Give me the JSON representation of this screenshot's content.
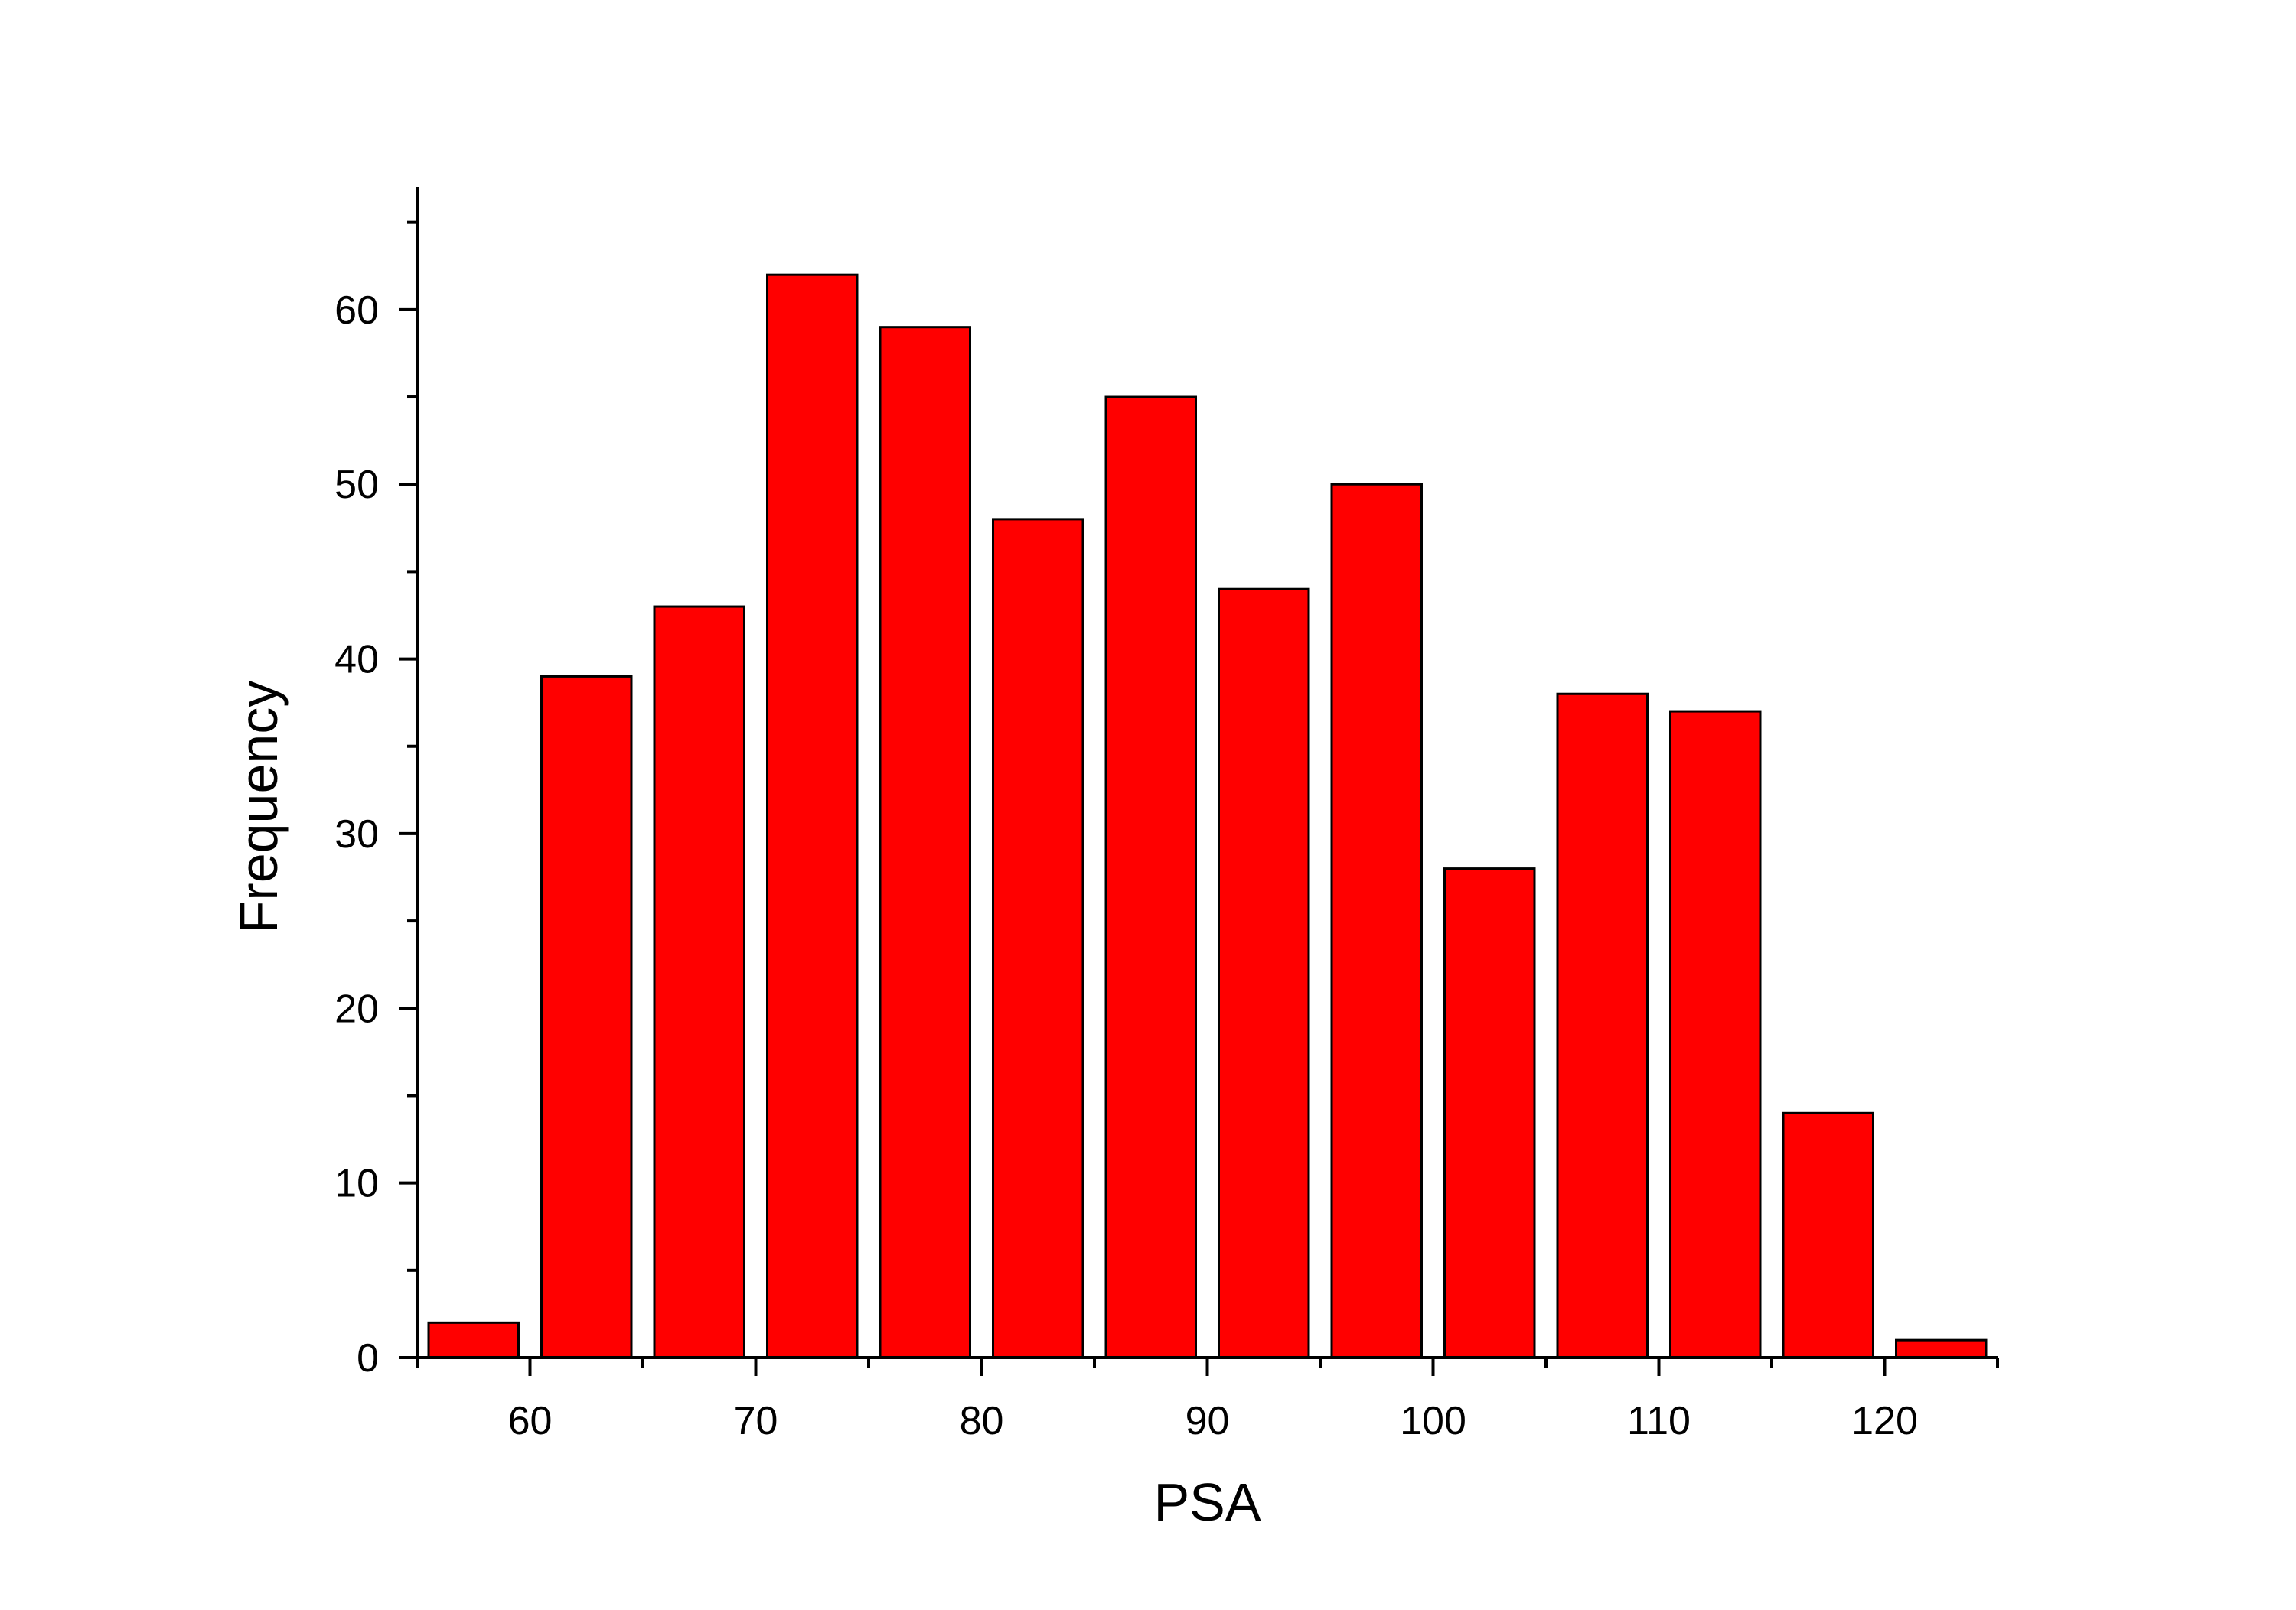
{
  "chart_data": {
    "type": "bar",
    "title": "",
    "xlabel": "PSA",
    "ylabel": "Frequency",
    "bin_width": 5,
    "bins": [
      {
        "start": 55,
        "end": 60,
        "value": 2
      },
      {
        "start": 60,
        "end": 65,
        "value": 39
      },
      {
        "start": 65,
        "end": 70,
        "value": 43
      },
      {
        "start": 70,
        "end": 75,
        "value": 62
      },
      {
        "start": 75,
        "end": 80,
        "value": 59
      },
      {
        "start": 80,
        "end": 85,
        "value": 48
      },
      {
        "start": 85,
        "end": 90,
        "value": 55
      },
      {
        "start": 90,
        "end": 95,
        "value": 44
      },
      {
        "start": 95,
        "end": 100,
        "value": 50
      },
      {
        "start": 100,
        "end": 105,
        "value": 28
      },
      {
        "start": 105,
        "end": 110,
        "value": 38
      },
      {
        "start": 110,
        "end": 115,
        "value": 37
      },
      {
        "start": 115,
        "end": 120,
        "value": 14
      },
      {
        "start": 120,
        "end": 125,
        "value": 1
      }
    ],
    "xlim": [
      55,
      125
    ],
    "ylim": [
      0,
      67
    ],
    "x_ticks": [
      60,
      70,
      80,
      90,
      100,
      110,
      120
    ],
    "x_minor_ticks": [
      55,
      65,
      75,
      85,
      95,
      105,
      115,
      125
    ],
    "y_ticks": [
      0,
      10,
      20,
      30,
      40,
      50,
      60
    ],
    "y_minor_ticks": [
      5,
      15,
      25,
      35,
      45,
      55,
      65
    ],
    "grid": false,
    "legend": "none",
    "bar_color": "#FF0000",
    "edge_color": "#000000"
  }
}
